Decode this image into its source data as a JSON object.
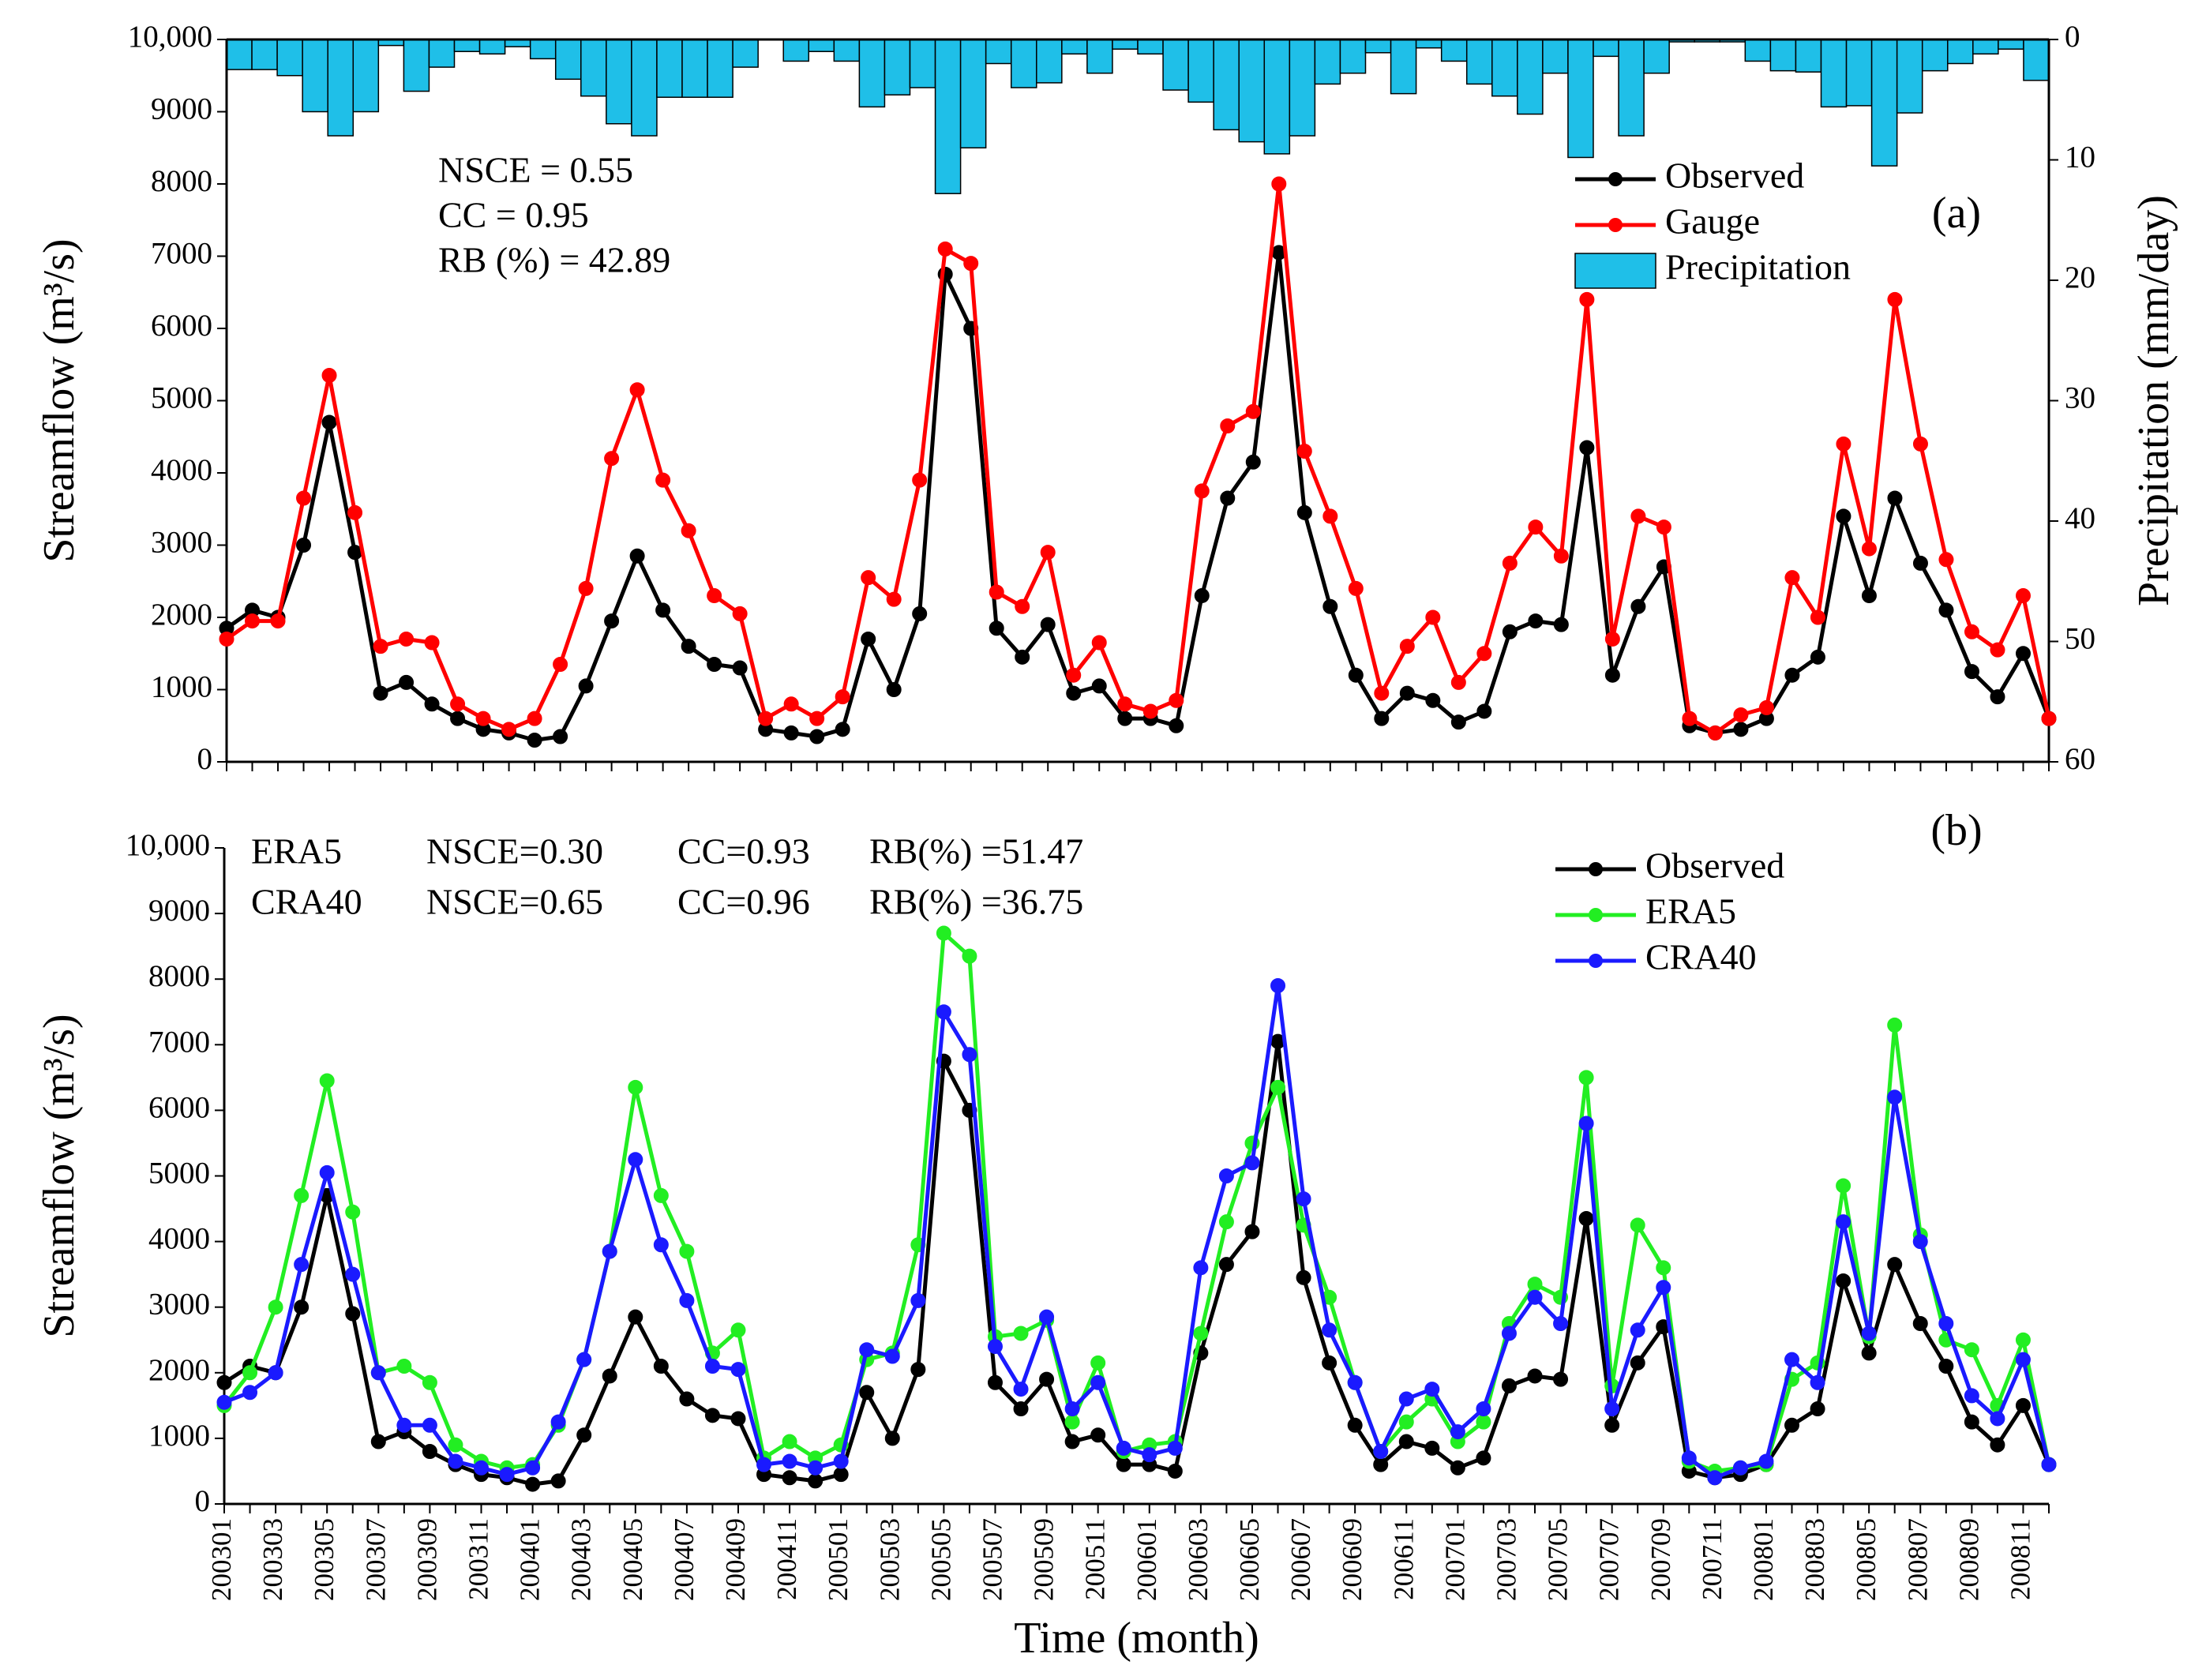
{
  "chart_data": [
    {
      "type": "combo",
      "ylabel": "Streamflow (m³/s)",
      "y2label": "Precipitation (mm/day)",
      "panel_label": "(a)",
      "annotations": [
        "NSCE = 0.55",
        "CC = 0.95",
        "RB (%) = 42.89"
      ],
      "ylim": [
        0,
        10000
      ],
      "yticks": [
        0,
        1000,
        2000,
        3000,
        4000,
        5000,
        6000,
        7000,
        8000,
        9000,
        {
          "value": 10000,
          "label": "10,000"
        }
      ],
      "y2lim": [
        0,
        60
      ],
      "y2_inverted": true,
      "y2ticks": [
        0,
        10,
        20,
        30,
        40,
        50,
        60
      ],
      "legend": "upper right",
      "series": [
        {
          "name": "Observed",
          "type": "line",
          "color": "#000000",
          "values": [
            1850,
            2100,
            2000,
            3000,
            4700,
            2900,
            950,
            1100,
            800,
            600,
            450,
            400,
            300,
            350,
            1050,
            1950,
            2850,
            2100,
            1600,
            1350,
            1300,
            450,
            400,
            350,
            450,
            1700,
            1000,
            2050,
            6750,
            6000,
            1850,
            1450,
            1900,
            950,
            1050,
            600,
            600,
            500,
            2300,
            3650,
            4150,
            7050,
            3450,
            2150,
            1200,
            600,
            950,
            850,
            550,
            700,
            1800,
            1950,
            1900,
            4350,
            1200,
            2150,
            2700,
            500,
            400,
            450,
            600,
            1200,
            1450,
            3400,
            2300,
            3650,
            2750,
            2100,
            1250,
            900,
            1500,
            600
          ]
        },
        {
          "name": "Gauge",
          "type": "line",
          "color": "#ff0000",
          "values": [
            1700,
            1950,
            1950,
            3650,
            5350,
            3450,
            1600,
            1700,
            1650,
            800,
            600,
            450,
            600,
            1350,
            2400,
            4200,
            5150,
            3900,
            3200,
            2300,
            2050,
            600,
            800,
            600,
            900,
            2550,
            2250,
            3900,
            7100,
            6900,
            2350,
            2150,
            2900,
            1200,
            1650,
            800,
            700,
            850,
            3750,
            4650,
            4850,
            8000,
            4300,
            3400,
            2400,
            950,
            1600,
            2000,
            1100,
            1500,
            2750,
            3250,
            2850,
            6400,
            1700,
            3400,
            3250,
            600,
            400,
            650,
            750,
            2550,
            2000,
            4400,
            2950,
            6400,
            4400,
            2800,
            1800,
            1550,
            2300,
            600
          ]
        },
        {
          "name": "Precipitation",
          "type": "bar",
          "axis": "y2",
          "color": "#1fbfe8",
          "values": [
            2.5,
            2.5,
            3,
            6,
            8,
            6,
            0.5,
            4.3,
            2.3,
            1,
            1.2,
            0.6,
            1.6,
            3.3,
            4.7,
            7,
            8,
            4.8,
            4.8,
            4.8,
            2.3,
            0,
            1.8,
            1,
            1.8,
            5.6,
            4.6,
            4,
            12.8,
            9,
            2,
            4,
            3.6,
            1.2,
            2.8,
            0.8,
            1.2,
            4.2,
            5.2,
            7.5,
            8.5,
            9.5,
            8,
            3.7,
            2.8,
            1.1,
            4.5,
            0.7,
            1.8,
            3.7,
            4.7,
            6.2,
            2.8,
            9.8,
            1.4,
            8,
            2.8,
            0.2,
            0.2,
            0.2,
            1.8,
            2.6,
            2.7,
            5.6,
            5.5,
            10.5,
            6.1,
            2.6,
            2,
            1.2,
            0.8,
            3.4
          ]
        }
      ]
    },
    {
      "type": "line",
      "ylabel": "Streamflow (m³/s)",
      "xlabel": "Time (month)",
      "panel_label": "(b)",
      "annotations": [
        [
          "ERA5",
          "NSCE=0.30",
          "CC=0.93",
          "RB(%) =51.47"
        ],
        [
          "CRA40",
          "NSCE=0.65",
          "CC=0.96",
          "RB(%) =36.75"
        ]
      ],
      "categories": [
        "200301",
        null,
        "200303",
        null,
        "200305",
        null,
        "200307",
        null,
        "200309",
        null,
        "200311",
        null,
        "200401",
        null,
        "200403",
        null,
        "200405",
        null,
        "200407",
        null,
        "200409",
        null,
        "200411",
        null,
        "200501",
        null,
        "200503",
        null,
        "200505",
        null,
        "200507",
        null,
        "200509",
        null,
        "200511",
        null,
        "200601",
        null,
        "200603",
        null,
        "200605",
        null,
        "200607",
        null,
        "200609",
        null,
        "200611",
        null,
        "200701",
        null,
        "200703",
        null,
        "200705",
        null,
        "200707",
        null,
        "200709",
        null,
        "200711",
        null,
        "200801",
        null,
        "200803",
        null,
        "200805",
        null,
        "200807",
        null,
        "200809",
        null,
        "200811",
        null
      ],
      "ylim": [
        0,
        10000
      ],
      "yticks": [
        0,
        1000,
        2000,
        3000,
        4000,
        5000,
        6000,
        7000,
        8000,
        9000,
        {
          "value": 10000,
          "label": "10,000"
        }
      ],
      "legend": "upper right",
      "series": [
        {
          "name": "Observed",
          "color": "#000000",
          "values": [
            1850,
            2100,
            2000,
            3000,
            4700,
            2900,
            950,
            1100,
            800,
            600,
            450,
            400,
            300,
            350,
            1050,
            1950,
            2850,
            2100,
            1600,
            1350,
            1300,
            450,
            400,
            350,
            450,
            1700,
            1000,
            2050,
            6750,
            6000,
            1850,
            1450,
            1900,
            950,
            1050,
            600,
            600,
            500,
            2300,
            3650,
            4150,
            7050,
            3450,
            2150,
            1200,
            600,
            950,
            850,
            550,
            700,
            1800,
            1950,
            1900,
            4350,
            1200,
            2150,
            2700,
            500,
            400,
            450,
            600,
            1200,
            1450,
            3400,
            2300,
            3650,
            2750,
            2100,
            1250,
            900,
            1500,
            600
          ]
        },
        {
          "name": "ERA5",
          "color": "#22ee22",
          "values": [
            1500,
            2000,
            3000,
            4700,
            6450,
            4450,
            2000,
            2100,
            1850,
            900,
            650,
            550,
            600,
            1200,
            2200,
            3850,
            6350,
            4700,
            3850,
            2300,
            2650,
            700,
            950,
            700,
            900,
            2200,
            2300,
            3950,
            8700,
            8350,
            2550,
            2600,
            2800,
            1250,
            2150,
            800,
            900,
            950,
            2600,
            4300,
            5500,
            6350,
            4250,
            3150,
            1850,
            800,
            1250,
            1600,
            950,
            1250,
            2750,
            3350,
            3150,
            6500,
            1800,
            4250,
            3600,
            650,
            500,
            550,
            600,
            1900,
            2150,
            4850,
            2550,
            7300,
            4100,
            2500,
            2350,
            1500,
            2500,
            600
          ]
        },
        {
          "name": "CRA40",
          "color": "#1a1aff",
          "values": [
            1550,
            1700,
            2000,
            3650,
            5050,
            3500,
            2000,
            1200,
            1200,
            650,
            550,
            450,
            550,
            1250,
            2200,
            3850,
            5250,
            3950,
            3100,
            2100,
            2050,
            600,
            650,
            550,
            650,
            2350,
            2250,
            3100,
            7500,
            6850,
            2400,
            1750,
            2850,
            1450,
            1850,
            850,
            750,
            850,
            3600,
            5000,
            5200,
            7900,
            4650,
            2650,
            1850,
            800,
            1600,
            1750,
            1100,
            1450,
            2600,
            3150,
            2750,
            5800,
            1450,
            2650,
            3300,
            700,
            400,
            550,
            650,
            2200,
            1850,
            4300,
            2600,
            6200,
            4000,
            2750,
            1650,
            1300,
            2200,
            600
          ]
        }
      ]
    }
  ]
}
